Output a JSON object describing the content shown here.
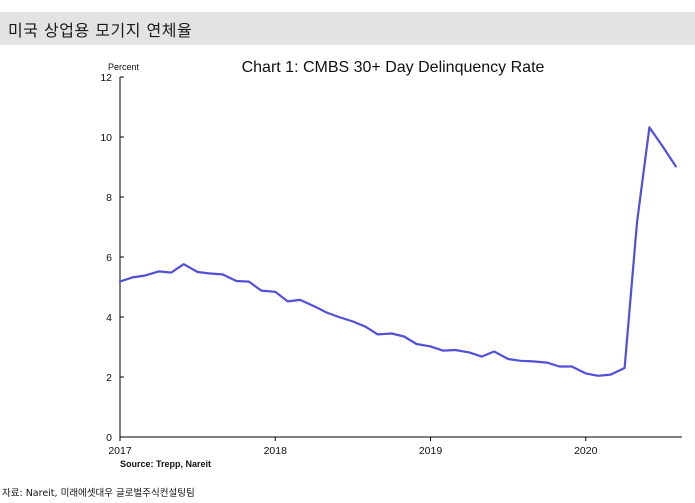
{
  "header": {
    "title": "미국 상업용 모기지 연체율"
  },
  "chart_data": {
    "type": "line",
    "title": "Chart 1: CMBS 30+ Day Delinquency Rate",
    "ylabel": "Percent",
    "xlabel": "",
    "ylim": [
      0,
      12
    ],
    "yticks": [
      "0",
      "2",
      "4",
      "6",
      "8",
      "10",
      "12"
    ],
    "xlim": [
      2017.0,
      2020.62
    ],
    "xticks": [
      {
        "value": 2017,
        "label": "2017"
      },
      {
        "value": 2018,
        "label": "2018"
      },
      {
        "value": 2019,
        "label": "2019"
      },
      {
        "value": 2020,
        "label": "2020"
      }
    ],
    "grid": false,
    "series": [
      {
        "name": "CMBS 30+ Day Delinquency Rate",
        "color": "#5150d6",
        "points": [
          [
            2017.0,
            5.18
          ],
          [
            2017.08,
            5.32
          ],
          [
            2017.16,
            5.38
          ],
          [
            2017.25,
            5.52
          ],
          [
            2017.33,
            5.48
          ],
          [
            2017.41,
            5.76
          ],
          [
            2017.5,
            5.5
          ],
          [
            2017.58,
            5.45
          ],
          [
            2017.66,
            5.42
          ],
          [
            2017.75,
            5.2
          ],
          [
            2017.83,
            5.18
          ],
          [
            2017.91,
            4.88
          ],
          [
            2018.0,
            4.84
          ],
          [
            2018.08,
            4.52
          ],
          [
            2018.16,
            4.57
          ],
          [
            2018.25,
            4.36
          ],
          [
            2018.33,
            4.15
          ],
          [
            2018.41,
            4.0
          ],
          [
            2018.5,
            3.85
          ],
          [
            2018.58,
            3.68
          ],
          [
            2018.66,
            3.42
          ],
          [
            2018.75,
            3.45
          ],
          [
            2018.83,
            3.35
          ],
          [
            2018.91,
            3.1
          ],
          [
            2019.0,
            3.02
          ],
          [
            2019.08,
            2.88
          ],
          [
            2019.16,
            2.9
          ],
          [
            2019.25,
            2.82
          ],
          [
            2019.33,
            2.68
          ],
          [
            2019.41,
            2.85
          ],
          [
            2019.5,
            2.6
          ],
          [
            2019.58,
            2.54
          ],
          [
            2019.66,
            2.52
          ],
          [
            2019.75,
            2.48
          ],
          [
            2019.83,
            2.35
          ],
          [
            2019.91,
            2.35
          ],
          [
            2020.0,
            2.12
          ],
          [
            2020.08,
            2.04
          ],
          [
            2020.16,
            2.08
          ],
          [
            2020.25,
            2.3
          ],
          [
            2020.33,
            7.15
          ],
          [
            2020.41,
            10.32
          ],
          [
            2020.5,
            9.65
          ],
          [
            2020.58,
            9.02
          ]
        ]
      }
    ],
    "source_note": "Source: Trepp, Nareit"
  },
  "footer": {
    "source": "자료: Nareit, 미래에셋대우 글로벌주식컨설팅팀"
  }
}
